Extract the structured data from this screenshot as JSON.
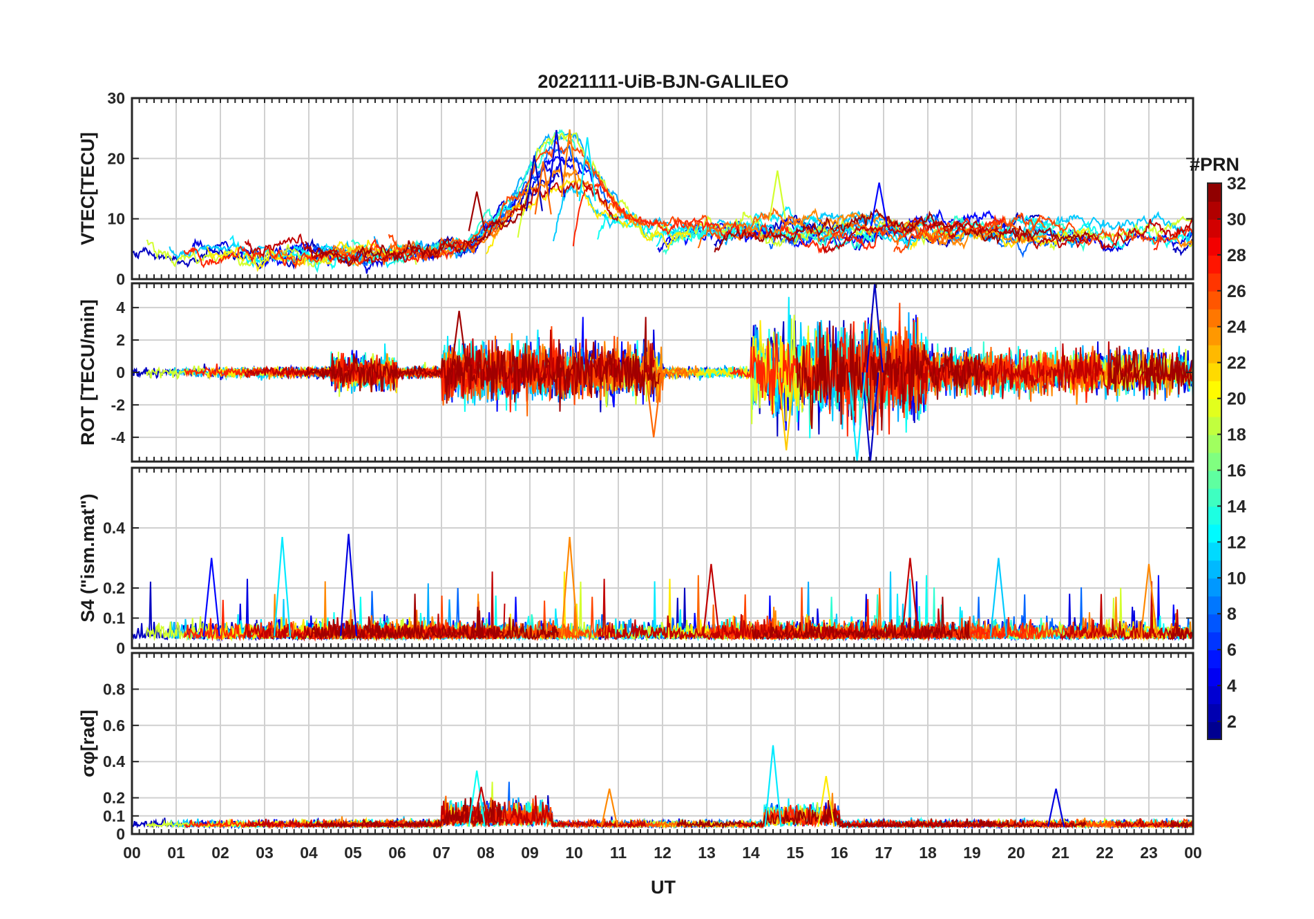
{
  "chart_data": {
    "type": "line",
    "title": "20221111-UiB-BJN-GALILEO",
    "xlabel": "UT",
    "x_tick_labels": [
      "00",
      "01",
      "02",
      "03",
      "04",
      "05",
      "06",
      "07",
      "08",
      "09",
      "10",
      "11",
      "12",
      "13",
      "14",
      "15",
      "16",
      "17",
      "18",
      "19",
      "20",
      "21",
      "22",
      "23",
      "00"
    ],
    "x_range_hours": [
      0,
      24
    ],
    "grid": true,
    "colorbar": {
      "title": "#PRN",
      "range": [
        1,
        32
      ],
      "ticks": [
        "2",
        "4",
        "6",
        "8",
        "10",
        "12",
        "14",
        "16",
        "18",
        "20",
        "22",
        "24",
        "26",
        "28",
        "30",
        "32"
      ],
      "colormap": "jet",
      "placement": "right"
    },
    "panels": [
      {
        "id": "vtec",
        "ylabel": "VTEC[TECU]",
        "ylim": [
          0,
          30
        ],
        "y_ticks": [
          "0",
          "10",
          "20",
          "30"
        ],
        "series_peaks": [
          {
            "prn": 4,
            "x": 9.6,
            "y": 24.7
          },
          {
            "prn": 24,
            "x": 9.9,
            "y": 24.8
          },
          {
            "prn": 12,
            "x": 10.3,
            "y": 23.5
          },
          {
            "prn": 3,
            "x": 9.1,
            "y": 20.5
          },
          {
            "prn": 25,
            "x": 9.3,
            "y": 19.5
          },
          {
            "prn": 31,
            "x": 7.8,
            "y": 14.5
          },
          {
            "prn": 19,
            "x": 14.6,
            "y": 18.0
          },
          {
            "prn": 5,
            "x": 16.9,
            "y": 16.0
          }
        ],
        "typical_level": "3-12 TECU outside 08-11 UT"
      },
      {
        "id": "rot",
        "ylabel": "ROT [TECU/min]",
        "ylim": [
          -5.5,
          5.5
        ],
        "y_ticks": [
          "-4",
          "-2",
          "0",
          "2",
          "4"
        ],
        "extremes": [
          {
            "prn": 3,
            "x": 16.8,
            "y": 5.5
          },
          {
            "prn": 3,
            "x": 16.7,
            "y": -5.5
          },
          {
            "prn": 12,
            "x": 16.4,
            "y": -5.5
          },
          {
            "prn": 22,
            "x": 14.8,
            "y": -4.8
          },
          {
            "prn": 31,
            "x": 7.4,
            "y": 3.8
          },
          {
            "prn": 25,
            "x": 11.8,
            "y": -4.0
          }
        ]
      },
      {
        "id": "s4",
        "ylabel": "S4 (\"ism.mat\")",
        "ylim": [
          0,
          0.6
        ],
        "y_ticks": [
          "0",
          "0.1",
          "0.2",
          "0.4"
        ],
        "peaks": [
          {
            "prn": 4,
            "x": 4.9,
            "y": 0.38
          },
          {
            "prn": 24,
            "x": 9.9,
            "y": 0.37
          },
          {
            "prn": 12,
            "x": 3.4,
            "y": 0.37
          },
          {
            "prn": 5,
            "x": 1.8,
            "y": 0.3
          },
          {
            "prn": 30,
            "x": 13.1,
            "y": 0.28
          },
          {
            "prn": 30,
            "x": 17.6,
            "y": 0.3
          },
          {
            "prn": 11,
            "x": 19.6,
            "y": 0.3
          },
          {
            "prn": 24,
            "x": 23.0,
            "y": 0.28
          }
        ]
      },
      {
        "id": "sigma_phi",
        "ylabel": "σφ[rad]",
        "ylim": [
          0,
          1.0
        ],
        "y_ticks": [
          "0",
          "0.1",
          "0.2",
          "0.4",
          "0.6",
          "0.8"
        ],
        "peaks": [
          {
            "prn": 12,
            "x": 14.5,
            "y": 0.49
          },
          {
            "prn": 13,
            "x": 7.8,
            "y": 0.35
          },
          {
            "prn": 30,
            "x": 7.9,
            "y": 0.26
          },
          {
            "prn": 21,
            "x": 15.7,
            "y": 0.32
          },
          {
            "prn": 4,
            "x": 20.9,
            "y": 0.25
          },
          {
            "prn": 24,
            "x": 10.8,
            "y": 0.25
          }
        ]
      }
    ]
  }
}
